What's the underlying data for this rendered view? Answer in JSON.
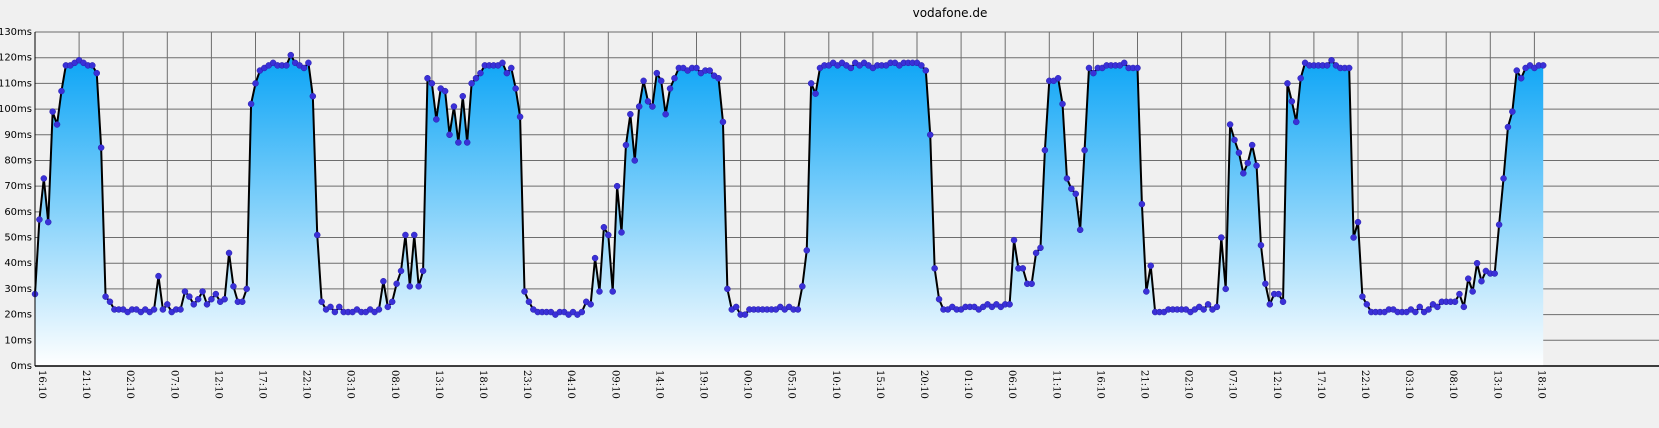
{
  "chart_data": {
    "type": "area",
    "title": "vodafone.de",
    "xlabel": "",
    "ylabel": "",
    "ylim": [
      0,
      130
    ],
    "grid": true,
    "y_ticks": [
      0,
      10,
      20,
      30,
      40,
      50,
      60,
      70,
      80,
      90,
      100,
      110,
      120,
      130
    ],
    "y_tick_labels": [
      "0ms",
      "10ms",
      "20ms",
      "30ms",
      "40ms",
      "50ms",
      "60ms",
      "70ms",
      "80ms",
      "90ms",
      "100ms",
      "110ms",
      "120ms",
      "130ms"
    ],
    "x_tick_labels": [
      "16:10",
      "21:10",
      "02:10",
      "07:10",
      "12:10",
      "17:10",
      "22:10",
      "03:10",
      "08:10",
      "13:10",
      "18:10",
      "23:10",
      "04:10",
      "09:10",
      "14:10",
      "19:10",
      "00:10",
      "05:10",
      "10:10",
      "15:10",
      "20:10",
      "01:10",
      "06:10",
      "11:10",
      "16:10",
      "21:10",
      "02:10",
      "07:10",
      "12:10",
      "17:10",
      "22:10",
      "03:10",
      "08:10",
      "13:10",
      "18:10"
    ],
    "points_per_tick": 10,
    "colors": {
      "fill_top": "#0aa4f6",
      "fill_bottom": "#ffffff",
      "line": "#000000",
      "marker": "#3a30d8",
      "grid": "#6d6d6d",
      "background": "#f0f0f0"
    },
    "series": [
      {
        "values": [
          28,
          57,
          73,
          56,
          99,
          94,
          107,
          117,
          117,
          118,
          119,
          118,
          117,
          117,
          114,
          85,
          27,
          25,
          22,
          22,
          22,
          21,
          22,
          22,
          21,
          22,
          21,
          22,
          35,
          22,
          24,
          21,
          22,
          22,
          29,
          27,
          24,
          26,
          29,
          24,
          26,
          28,
          25,
          26,
          44,
          31,
          25,
          25,
          30,
          102,
          110,
          115,
          116,
          117,
          118,
          117,
          117,
          117,
          121,
          118,
          117,
          116,
          118,
          105,
          51,
          25,
          22,
          23,
          21,
          23,
          21,
          21,
          21,
          22,
          21,
          21,
          22,
          21,
          22,
          33,
          23,
          25,
          32,
          37,
          51,
          31,
          51,
          31,
          37,
          112,
          110,
          96,
          108,
          107,
          90,
          101,
          87,
          105,
          87,
          110,
          112,
          114,
          117,
          117,
          117,
          117,
          118,
          114,
          116,
          108,
          97,
          29,
          25,
          22,
          21,
          21,
          21,
          21,
          20,
          21,
          21,
          20,
          21,
          20,
          21,
          25,
          24,
          42,
          29,
          54,
          51,
          29,
          70,
          52,
          86,
          98,
          80,
          101,
          111,
          103,
          101,
          114,
          111,
          98,
          108,
          112,
          116,
          116,
          115,
          116,
          116,
          114,
          115,
          115,
          113,
          112,
          95,
          30,
          22,
          23,
          20,
          20,
          22,
          22,
          22,
          22,
          22,
          22,
          22,
          23,
          22,
          23,
          22,
          22,
          31,
          45,
          110,
          106,
          116,
          117,
          117,
          118,
          117,
          118,
          117,
          116,
          118,
          117,
          118,
          117,
          116,
          117,
          117,
          117,
          118,
          118,
          117,
          118,
          118,
          118,
          118,
          117,
          115,
          90,
          38,
          26,
          22,
          22,
          23,
          22,
          22,
          23,
          23,
          23,
          22,
          23,
          24,
          23,
          24,
          23,
          24,
          24,
          49,
          38,
          38,
          32,
          32,
          44,
          46,
          84,
          111,
          111,
          112,
          102,
          73,
          69,
          67,
          53,
          84,
          116,
          114,
          116,
          116,
          117,
          117,
          117,
          117,
          118,
          116,
          116,
          116,
          63,
          29,
          39,
          21,
          21,
          21,
          22,
          22,
          22,
          22,
          22,
          21,
          22,
          23,
          22,
          24,
          22,
          23,
          50,
          30,
          94,
          88,
          83,
          75,
          79,
          86,
          78,
          47,
          32,
          24,
          28,
          28,
          25,
          110,
          103,
          95,
          112,
          118,
          117,
          117,
          117,
          117,
          117,
          119,
          117,
          116,
          116,
          116,
          50,
          56,
          27,
          24,
          21,
          21,
          21,
          21,
          22,
          22,
          21,
          21,
          21,
          22,
          21,
          23,
          21,
          22,
          24,
          23,
          25,
          25,
          25,
          25,
          28,
          23,
          34,
          29,
          40,
          33,
          37,
          36,
          36,
          55,
          73,
          93,
          99,
          115,
          112,
          116,
          117,
          116,
          117,
          117
        ]
      }
    ]
  }
}
